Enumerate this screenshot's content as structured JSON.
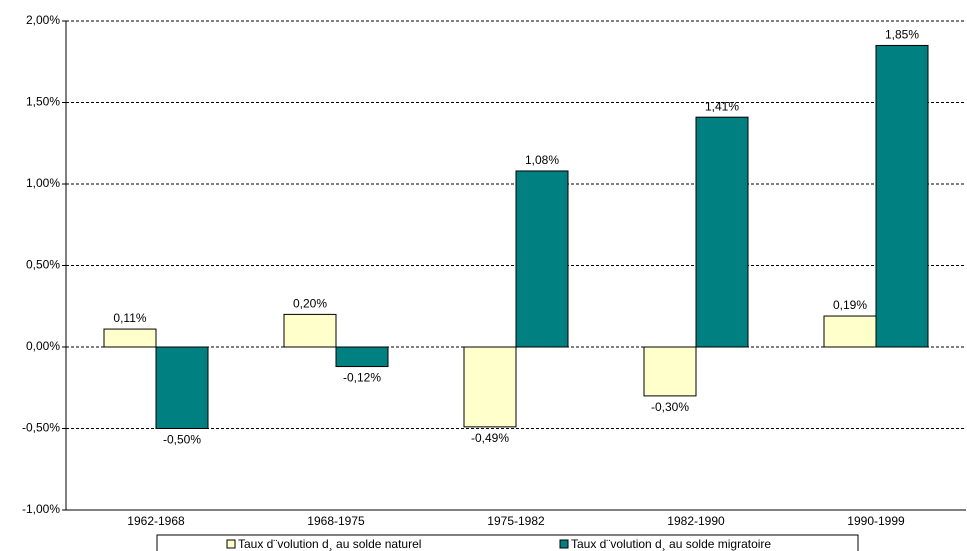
{
  "chart_data": {
    "type": "bar",
    "categories": [
      "1962-1968",
      "1968-1975",
      "1975-1982",
      "1982-1990",
      "1990-1999"
    ],
    "series": [
      {
        "name": "Taux d¨volution d¸ au solde naturel",
        "color": "#ffffcc",
        "values": [
          0.11,
          0.2,
          -0.49,
          -0.3,
          0.19
        ],
        "value_labels": [
          "0,11%",
          "0,20%",
          "-0,49%",
          "-0,30%",
          "0,19%"
        ]
      },
      {
        "name": "Taux d¨volution d¸ au solde migratoire",
        "color": "#008080",
        "values": [
          -0.5,
          -0.12,
          1.08,
          1.41,
          1.85
        ],
        "value_labels": [
          "-0,50%",
          "-0,12%",
          "1,08%",
          "1,41%",
          "1,85%"
        ]
      }
    ],
    "ylim": [
      -1,
      2
    ],
    "yticks": [
      {
        "value": -1,
        "label": "-1,00%"
      },
      {
        "value": -0.5,
        "label": "-0,50%"
      },
      {
        "value": 0,
        "label": "0,00%"
      },
      {
        "value": 0.5,
        "label": "0,50%"
      },
      {
        "value": 1,
        "label": "1,00%"
      },
      {
        "value": 1.5,
        "label": "1,50%"
      },
      {
        "value": 2,
        "label": "2,00%"
      }
    ],
    "grid": true,
    "legend": "bottom"
  }
}
